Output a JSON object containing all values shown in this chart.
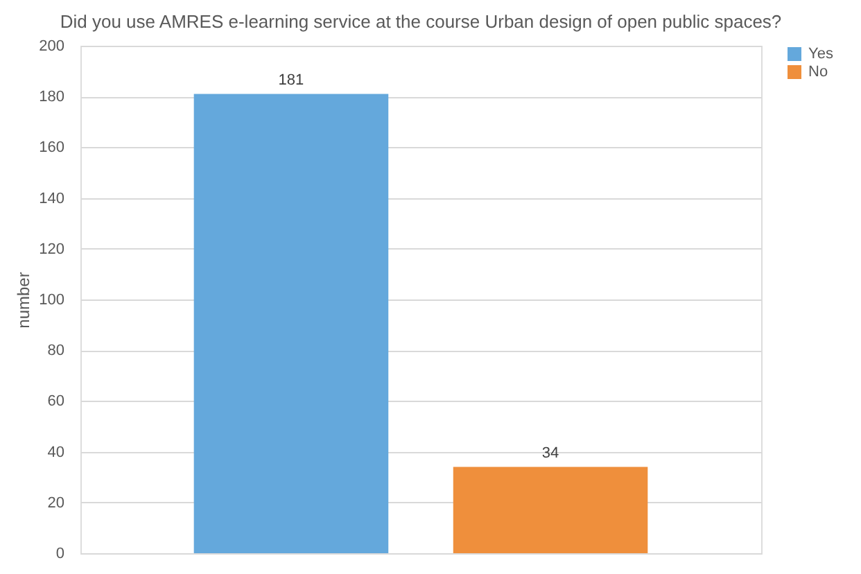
{
  "chart_data": {
    "type": "bar",
    "title": "Did you use AMRES e-learning service at the course Urban design of open public spaces?",
    "ylabel": "number",
    "categories": [
      null
    ],
    "series": [
      {
        "name": "Yes",
        "color": "#64a8dc",
        "values": [
          181
        ]
      },
      {
        "name": "No",
        "color": "#ef8f3c",
        "values": [
          34
        ]
      }
    ],
    "ylim": [
      0,
      200
    ],
    "yticks": [
      0,
      20,
      40,
      60,
      80,
      100,
      120,
      140,
      160,
      180,
      200
    ],
    "grid": "y",
    "legend": "right",
    "data_labels": true,
    "tick_labels": "y"
  }
}
